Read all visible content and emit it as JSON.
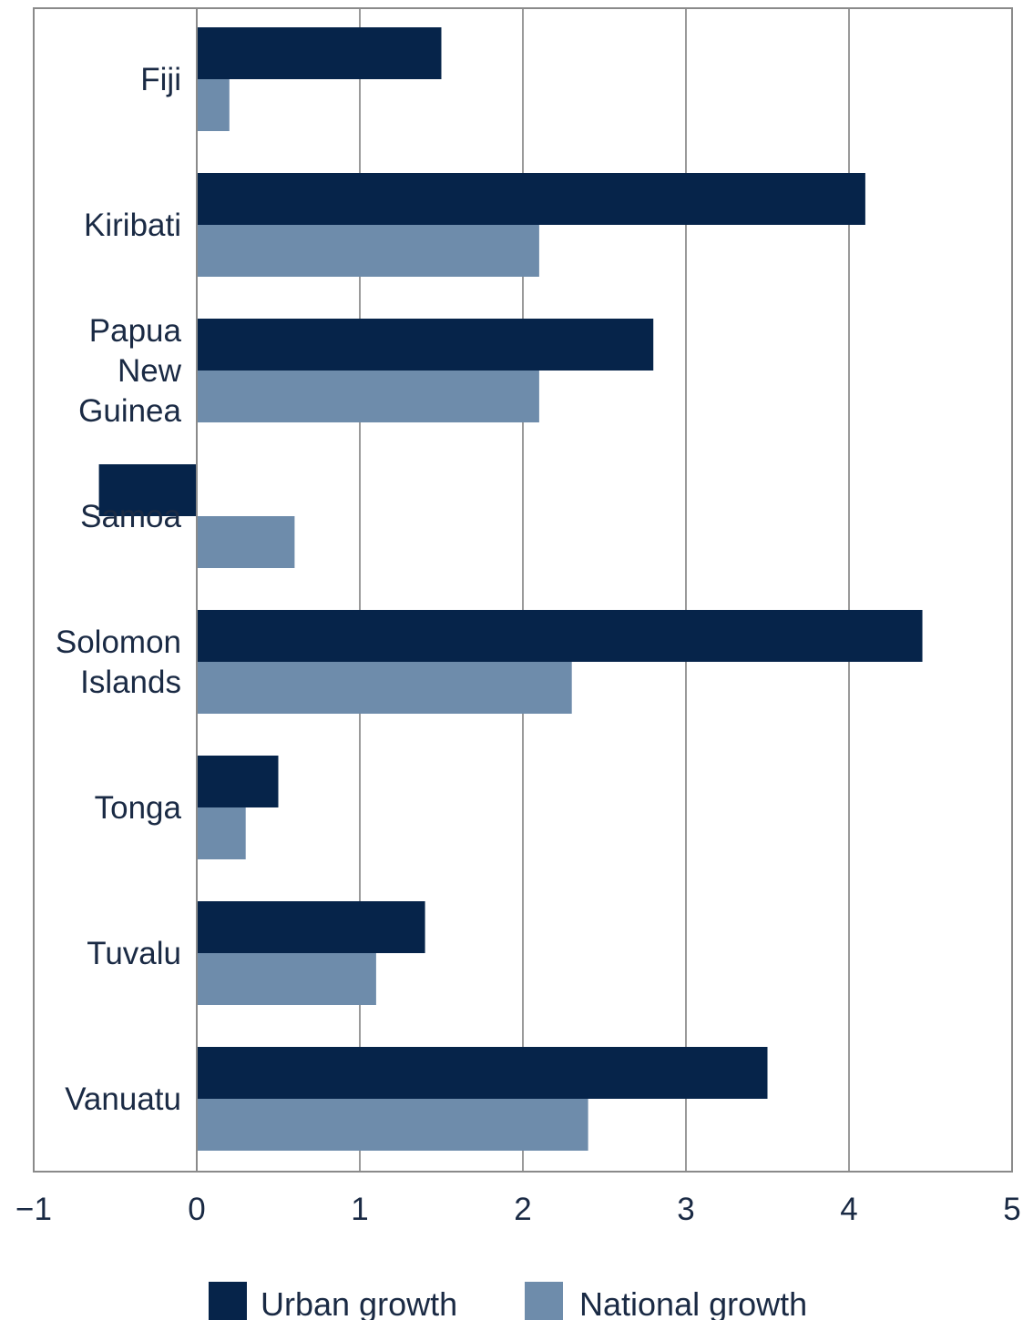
{
  "chart_data": {
    "type": "bar",
    "orientation": "horizontal",
    "categories": [
      [
        "Fiji"
      ],
      [
        "Kiribati"
      ],
      [
        "Papua",
        "New",
        "Guinea"
      ],
      [
        "Samoa"
      ],
      [
        "Solomon",
        "Islands"
      ],
      [
        "Tonga"
      ],
      [
        "Tuvalu"
      ],
      [
        "Vanuatu"
      ]
    ],
    "series": [
      {
        "name": "Urban growth",
        "color": "#06244a",
        "values": [
          1.5,
          4.1,
          2.8,
          -0.6,
          4.45,
          0.5,
          1.4,
          3.5
        ]
      },
      {
        "name": "National growth",
        "color": "#6e8cab",
        "values": [
          0.2,
          2.1,
          2.1,
          0.6,
          2.3,
          0.3,
          1.1,
          2.4
        ]
      }
    ],
    "xlim": [
      -1,
      5
    ],
    "xticks": [
      -1,
      0,
      1,
      2,
      3,
      4,
      5
    ],
    "xtick_labels": [
      "−1",
      "0",
      "1",
      "2",
      "3",
      "4",
      "5"
    ],
    "grid": true,
    "legend_position": "bottom",
    "title": "",
    "xlabel": "",
    "ylabel": ""
  }
}
